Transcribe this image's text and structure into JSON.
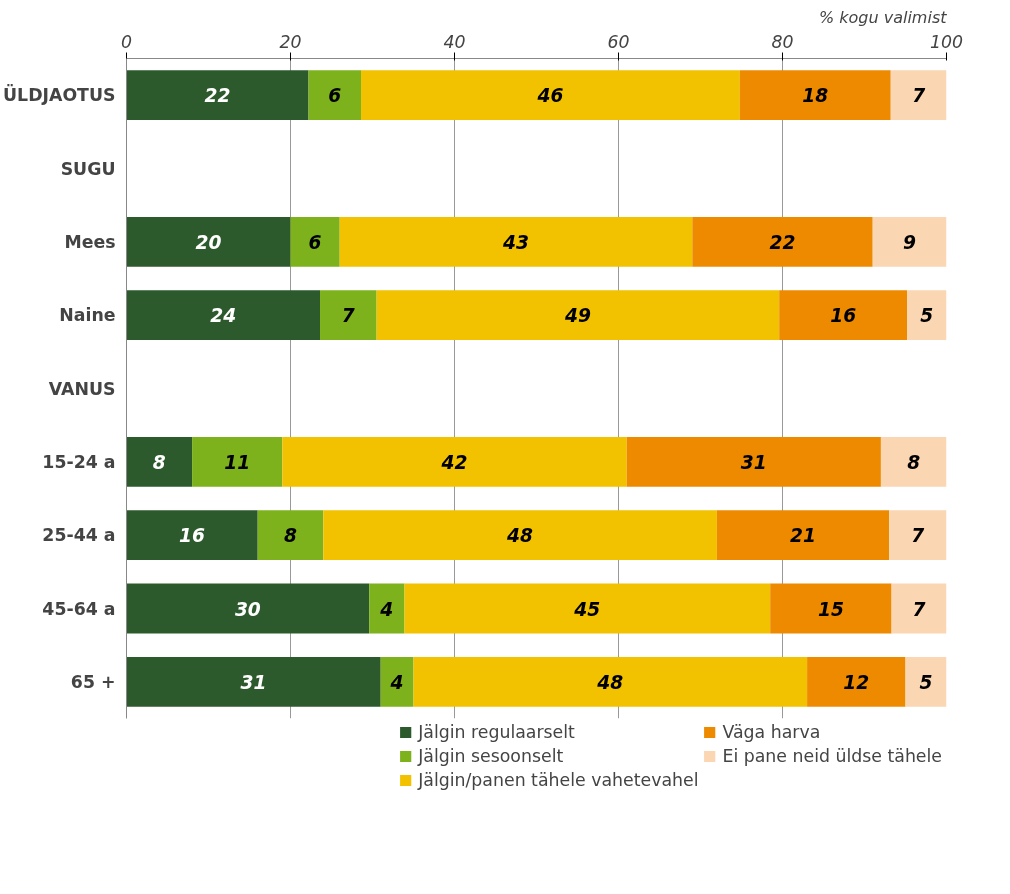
{
  "chart_data": {
    "type": "bar",
    "orientation": "horizontal",
    "stacked": true,
    "xlabel": "% kogu valimist",
    "categories": [
      "ÜLDJAOTUS",
      "SUGU",
      "Mees",
      "Naine",
      "VANUS",
      "15-24 a",
      "25-44 a",
      "45-64 a",
      "65 +"
    ],
    "series": [
      {
        "name": "Jälgin regulaarselt",
        "color": "#2d5a2d",
        "values": [
          22.2,
          null,
          20,
          23.6,
          null,
          8,
          16,
          29.6,
          31
        ],
        "value_labels": [
          "22",
          null,
          "20",
          "24",
          null,
          "8",
          "16",
          "30",
          "31"
        ]
      },
      {
        "name": "Jälgin sesoonselt",
        "color": "#7db21c",
        "values": [
          6.4,
          null,
          6,
          6.9,
          null,
          11,
          8,
          4.3,
          4
        ],
        "value_labels": [
          "6",
          null,
          "6",
          "7",
          null,
          "11",
          "8",
          "4",
          "4"
        ]
      },
      {
        "name": "Jälgin/panen tähele vahetevahel",
        "color": "#f2c200",
        "values": [
          46.2,
          null,
          43,
          49.1,
          null,
          42,
          48,
          44.6,
          48
        ],
        "value_labels": [
          "46",
          null,
          "43",
          "49",
          null,
          "42",
          "48",
          "45",
          "48"
        ]
      },
      {
        "name": "Väga harva",
        "color": "#ee8a00",
        "values": [
          18.4,
          null,
          22,
          15.6,
          null,
          31,
          21,
          14.8,
          12
        ],
        "value_labels": [
          "18",
          null,
          "22",
          "16",
          null,
          "31",
          "21",
          "15",
          "12"
        ]
      },
      {
        "name": "Ei pane neid üldse tähele",
        "color": "#fbd6b2",
        "values": [
          6.8,
          null,
          9,
          4.8,
          null,
          8,
          7,
          6.7,
          5
        ],
        "value_labels": [
          "7",
          null,
          "9",
          "5",
          null,
          "8",
          "7",
          "7",
          "5"
        ]
      }
    ],
    "xlim": [
      0,
      100
    ],
    "xticks": [
      0,
      20,
      40,
      60,
      80,
      100
    ],
    "grid": "x",
    "legend": "bottom"
  }
}
